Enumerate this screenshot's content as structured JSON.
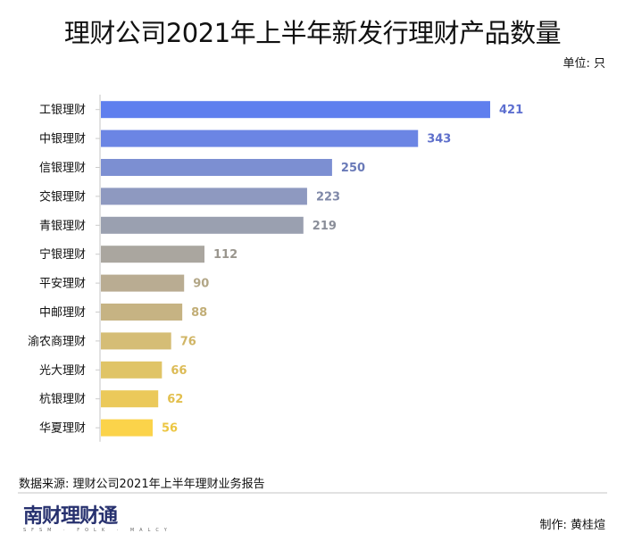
{
  "chart_data": {
    "type": "bar",
    "orientation": "horizontal",
    "title": "理财公司2021年上半年新发行理财产品数量",
    "unit_label": "单位: 只",
    "xlabel": "",
    "ylabel": "",
    "categories": [
      "工银理财",
      "中银理财",
      "信银理财",
      "交银理财",
      "青银理财",
      "宁银理财",
      "平安理财",
      "中邮理财",
      "渝农商理财",
      "光大理财",
      "杭银理财",
      "华夏理财"
    ],
    "values": [
      421,
      343,
      250,
      223,
      219,
      112,
      90,
      88,
      76,
      66,
      62,
      56
    ],
    "colors": [
      "#5f7fee",
      "#6b85e4",
      "#7c8fd2",
      "#8e99c0",
      "#9aa0b0",
      "#aaa69f",
      "#b9ac92",
      "#c6b383",
      "#d5bd76",
      "#e0c466",
      "#ebc95a",
      "#fbd34a"
    ],
    "label_colors": [
      "#5d6fd0",
      "#5e6fcb",
      "#6a7ab8",
      "#7f88a8",
      "#8a8e99",
      "#9a968e",
      "#b2a686",
      "#c2ae77",
      "#d0b565",
      "#dcbb56",
      "#e2bf4d",
      "#ecc641"
    ],
    "xlim": [
      0,
      421
    ],
    "grid": false,
    "legend": "none",
    "data_labels": true
  },
  "footer": {
    "source": "数据来源: 理财公司2021年上半年理财业务报告",
    "logo": "南财理财通",
    "logo_sub": "SFSM · FOLK · MALCY",
    "author": "制作:  黄桂煊"
  }
}
